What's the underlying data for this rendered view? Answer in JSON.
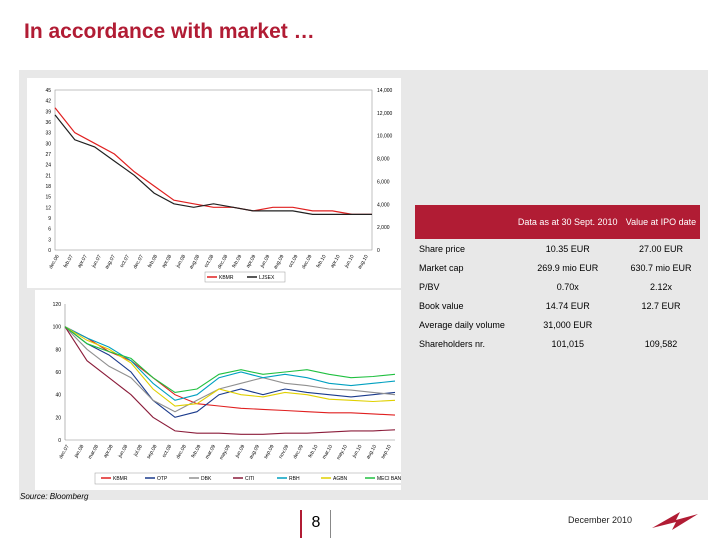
{
  "slide": {
    "title": "In accordance with market …",
    "source": "Source: Bloomberg",
    "page_number": "8",
    "date": "December 2010"
  },
  "colors": {
    "accent": "#b11c34",
    "panel": "#e8e8e8"
  },
  "table": {
    "headers": [
      "",
      "Data as at 30 Sept. 2010",
      "Value at IPO date"
    ],
    "rows": [
      {
        "label": "Share price",
        "current": "10.35 EUR",
        "ipo": "27.00 EUR"
      },
      {
        "label": "Market cap",
        "current": "269.9 mio EUR",
        "ipo": "630.7 mio EUR"
      },
      {
        "label": "P/BV",
        "current": "0.70x",
        "ipo": "2.12x"
      },
      {
        "label": "Book value",
        "current": "14.74 EUR",
        "ipo": "12.7 EUR"
      },
      {
        "label": "Average daily volume",
        "current": "31,000 EUR",
        "ipo": ""
      },
      {
        "label": "Shareholders nr.",
        "current": "101,015",
        "ipo": "109,582"
      }
    ]
  },
  "chart_data": [
    {
      "type": "line",
      "title": "",
      "left_axis": {
        "min": 0,
        "max": 45,
        "ticks": [
          "45",
          "42",
          "39",
          "36",
          "33",
          "30",
          "27",
          "24",
          "21",
          "18",
          "15",
          "12",
          "9",
          "6",
          "3",
          "0"
        ]
      },
      "right_axis": {
        "min": 0,
        "max": 14000,
        "ticks": [
          "14,000",
          "12,000",
          "10,000",
          "8,000",
          "6,000",
          "4,000",
          "2,000",
          "0"
        ]
      },
      "x_ticks": [
        "dec.06",
        "feb.07",
        "apr.07",
        "jun.07",
        "aug.07",
        "oct.07",
        "dec.07",
        "feb.08",
        "apr.08",
        "jun.08",
        "aug.08",
        "oct.08",
        "dec.08",
        "feb.09",
        "apr.09",
        "jun.09",
        "aug.09",
        "oct.09",
        "dec.09",
        "feb.10",
        "apr.10",
        "jun.10",
        "aug.10"
      ],
      "series": [
        {
          "name": "KBMR",
          "color": "#e02020",
          "values": [
            40,
            33,
            30,
            27,
            22,
            18,
            14,
            13,
            12,
            12,
            11,
            12,
            12,
            11,
            11,
            10,
            10
          ]
        },
        {
          "name": "LJSEX",
          "color": "#202020",
          "values": [
            38,
            31,
            29,
            25,
            21,
            16,
            13,
            12,
            13,
            12,
            11,
            11,
            11,
            10,
            10,
            10,
            10
          ]
        }
      ]
    },
    {
      "type": "line",
      "title": "",
      "y_axis": {
        "min": 0,
        "max": 120,
        "ticks": [
          "120",
          "100",
          "80",
          "60",
          "40",
          "20",
          "0"
        ]
      },
      "x_ticks": [
        "dec.07",
        "jan.08",
        "mar.08",
        "apr.08",
        "jun.08",
        "jul.08",
        "sep.08",
        "oct.08",
        "dec.08",
        "feb.09",
        "mar.09",
        "may.09",
        "jun.09",
        "aug.09",
        "sep.09",
        "nov.09",
        "dec.09",
        "feb.10",
        "mar.10",
        "may.10",
        "jun.10",
        "aug.10",
        "sep.10"
      ],
      "series": [
        {
          "name": "KBMR",
          "color": "#e02020",
          "values": [
            100,
            90,
            78,
            70,
            55,
            40,
            32,
            30,
            28,
            27,
            26,
            25,
            24,
            24,
            23,
            22
          ]
        },
        {
          "name": "OTP",
          "color": "#1a3a8c",
          "values": [
            100,
            85,
            75,
            60,
            35,
            20,
            25,
            40,
            45,
            40,
            45,
            42,
            40,
            38,
            40,
            42
          ]
        },
        {
          "name": "DBK",
          "color": "#909090",
          "values": [
            100,
            80,
            65,
            55,
            35,
            25,
            35,
            45,
            50,
            55,
            50,
            48,
            45,
            44,
            42,
            40
          ]
        },
        {
          "name": "CITI",
          "color": "#8b1c3a",
          "values": [
            100,
            70,
            55,
            40,
            20,
            8,
            6,
            6,
            5,
            5,
            6,
            6,
            7,
            8,
            8,
            9
          ]
        },
        {
          "name": "RBH",
          "color": "#00a0c0",
          "values": [
            100,
            90,
            82,
            70,
            50,
            35,
            40,
            55,
            60,
            55,
            58,
            55,
            50,
            48,
            50,
            52
          ]
        },
        {
          "name": "AGBN",
          "color": "#e0d000",
          "values": [
            100,
            88,
            80,
            68,
            45,
            30,
            32,
            45,
            40,
            38,
            42,
            40,
            36,
            35,
            34,
            35
          ]
        },
        {
          "name": "MECI BANKS",
          "color": "#20c040",
          "values": [
            100,
            85,
            78,
            72,
            55,
            42,
            45,
            58,
            62,
            58,
            60,
            62,
            58,
            55,
            56,
            58
          ]
        }
      ]
    }
  ]
}
